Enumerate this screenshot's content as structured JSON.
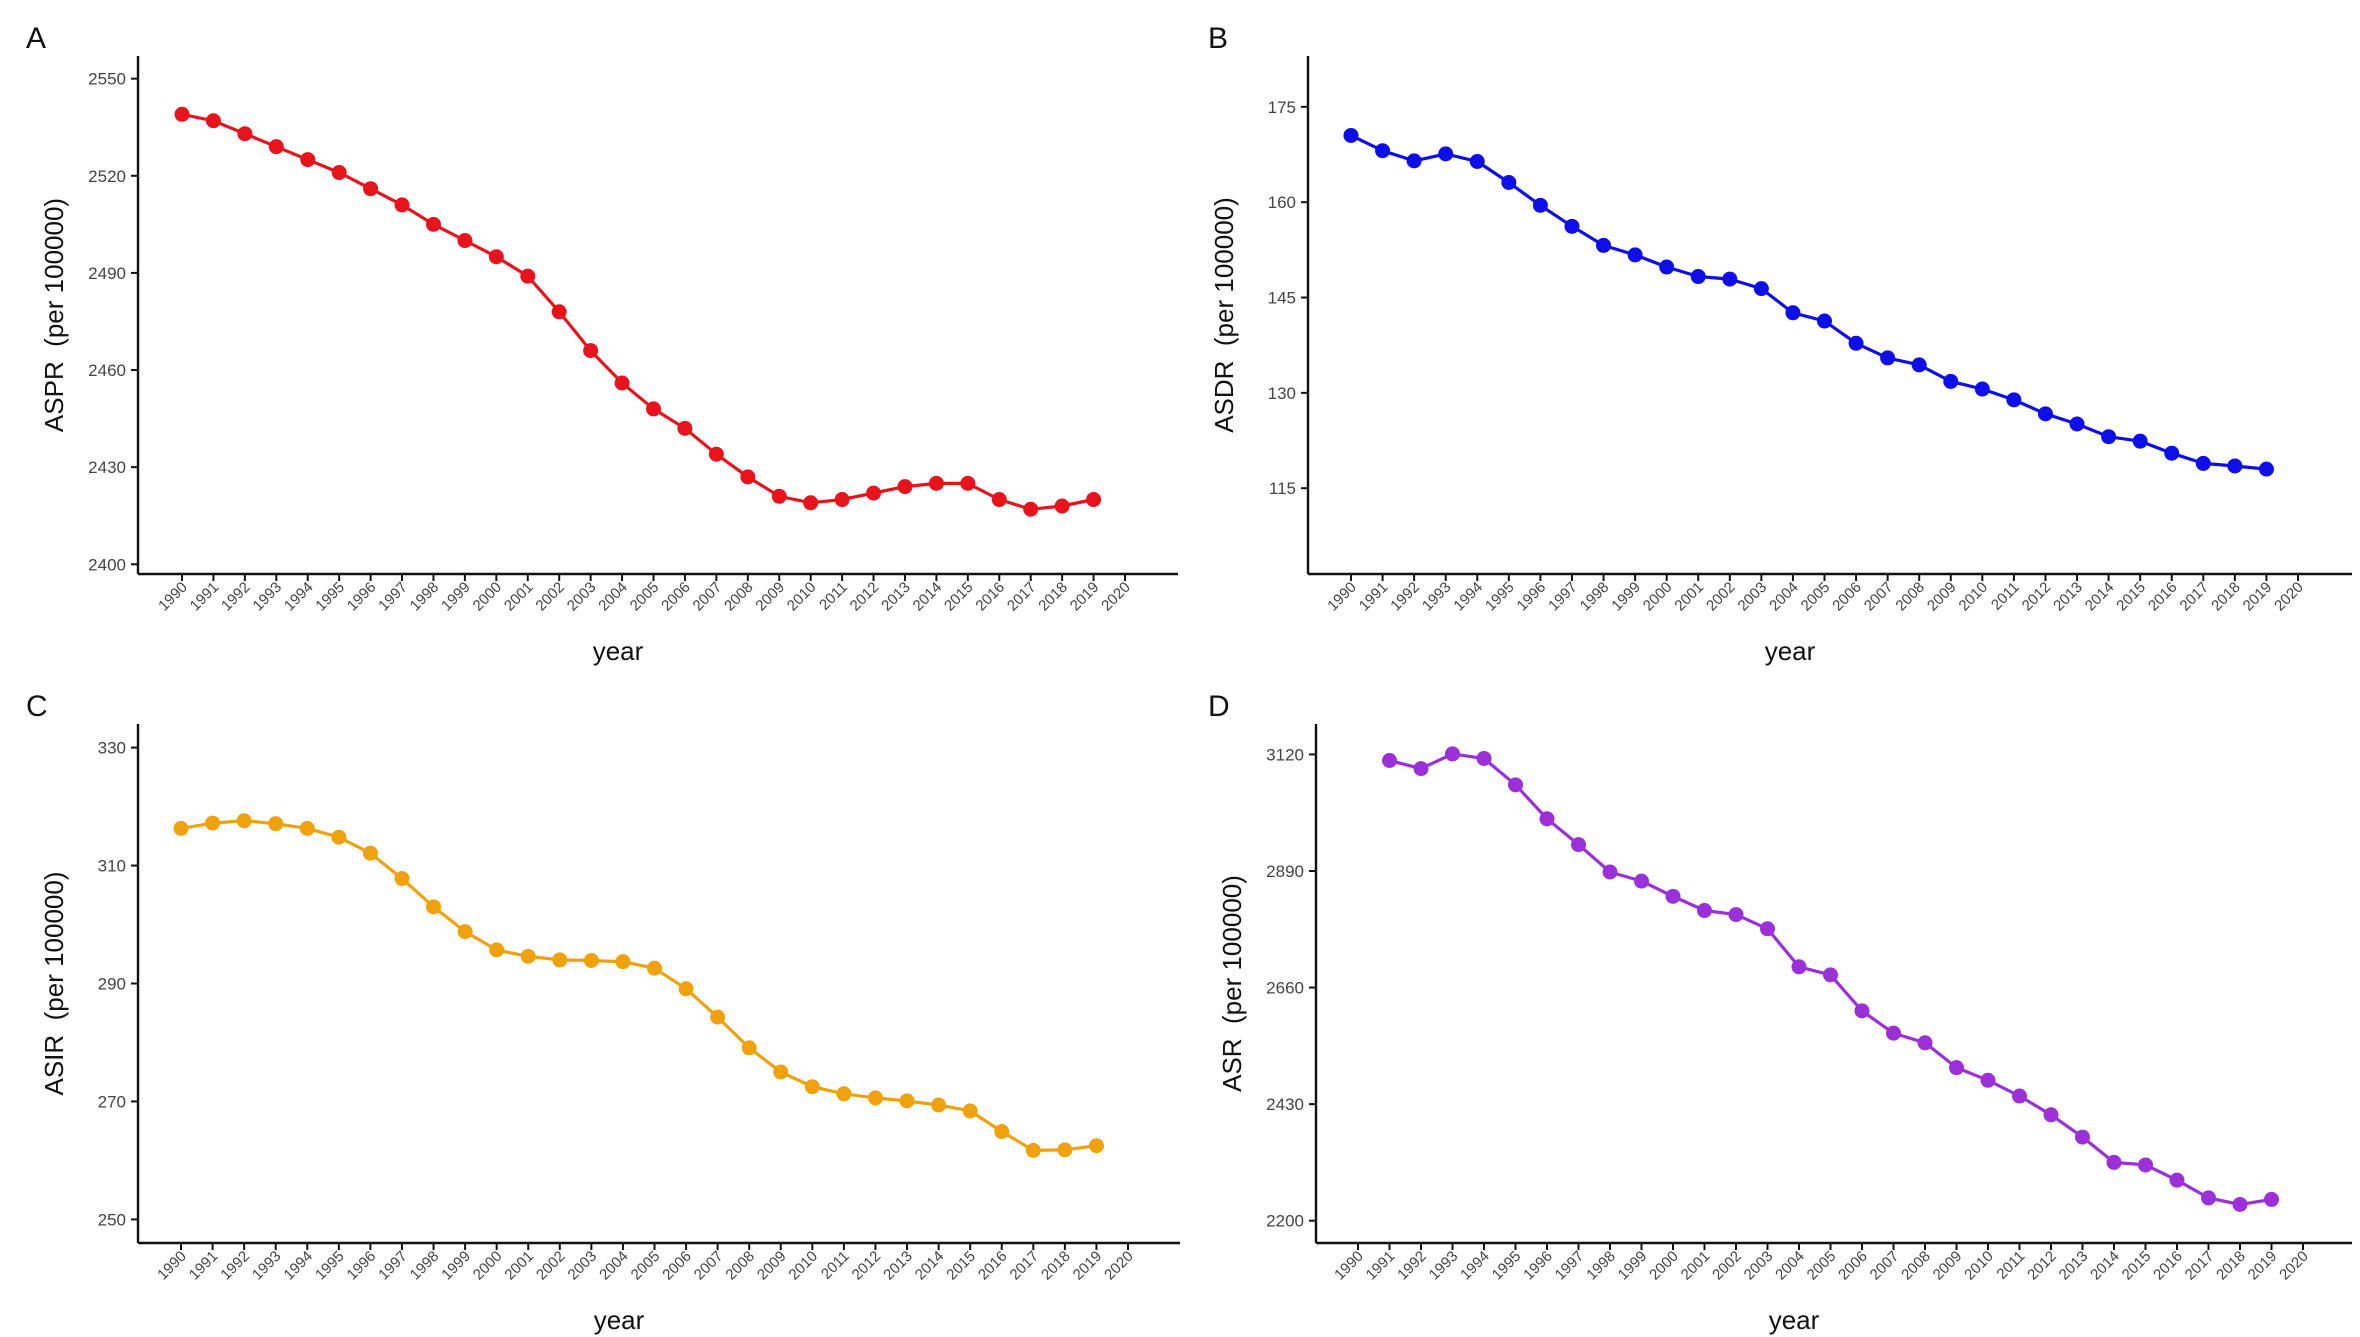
{
  "chart_data": [
    {
      "type": "line",
      "panel_label": "A",
      "xlabel": "year",
      "ylabel": "ASPR  (per 100000)",
      "x_ticks": [
        "1990",
        "1991",
        "1992",
        "1993",
        "1994",
        "1995",
        "1996",
        "1997",
        "1998",
        "1999",
        "2000",
        "2001",
        "2002",
        "2003",
        "2004",
        "2005",
        "2006",
        "2007",
        "2008",
        "2009",
        "2010",
        "2011",
        "2012",
        "2013",
        "2014",
        "2015",
        "2016",
        "2017",
        "2018",
        "2019",
        "2020"
      ],
      "ylim": [
        2397,
        2557
      ],
      "y_ticks": [
        2400,
        2430,
        2460,
        2490,
        2520,
        2550
      ],
      "color": "#e8141b",
      "grid": false,
      "series": [
        {
          "x": [
            1990,
            1991,
            1992,
            1993,
            1994,
            1995,
            1996,
            1997,
            1998,
            1999,
            2000,
            2001,
            2002,
            2003,
            2004,
            2005,
            2006,
            2007,
            2008,
            2009,
            2010,
            2011,
            2012,
            2013,
            2014,
            2015,
            2016,
            2017,
            2018,
            2019
          ],
          "values": [
            2539,
            2537,
            2533,
            2529,
            2525,
            2521,
            2516,
            2511,
            2505,
            2500,
            2495,
            2489,
            2478,
            2466,
            2456,
            2448,
            2442,
            2434,
            2427,
            2421,
            2419,
            2420,
            2422,
            2424,
            2425,
            2425,
            2420,
            2417,
            2418,
            2420
          ]
        }
      ]
    },
    {
      "type": "line",
      "panel_label": "B",
      "xlabel": "year",
      "ylabel": "ASDR  (per 100000)",
      "x_ticks": [
        "1990",
        "1991",
        "1992",
        "1993",
        "1994",
        "1995",
        "1996",
        "1997",
        "1998",
        "1999",
        "2000",
        "2001",
        "2002",
        "2003",
        "2004",
        "2005",
        "2006",
        "2007",
        "2008",
        "2009",
        "2010",
        "2011",
        "2012",
        "2013",
        "2014",
        "2015",
        "2016",
        "2017",
        "2018",
        "2019",
        "2020"
      ],
      "ylim": [
        101.5,
        183
      ],
      "y_ticks": [
        115,
        130,
        145,
        160,
        175
      ],
      "color": "#0d0ee8",
      "grid": false,
      "series": [
        {
          "x": [
            1990,
            1991,
            1992,
            1993,
            1994,
            1995,
            1996,
            1997,
            1998,
            1999,
            2000,
            2001,
            2002,
            2003,
            2004,
            2005,
            2006,
            2007,
            2008,
            2009,
            2010,
            2011,
            2012,
            2013,
            2014,
            2015,
            2016,
            2017,
            2018,
            2019
          ],
          "values": [
            170.5,
            168.1,
            166.5,
            167.6,
            166.4,
            163.1,
            159.5,
            156.2,
            153.2,
            151.7,
            149.8,
            148.3,
            147.9,
            146.4,
            142.6,
            141.3,
            137.8,
            135.5,
            134.4,
            131.8,
            130.6,
            128.9,
            126.7,
            125.1,
            123.1,
            122.4,
            120.5,
            118.9,
            118.5,
            118.0
          ]
        }
      ]
    },
    {
      "type": "line",
      "panel_label": "C",
      "xlabel": "year",
      "ylabel": "ASIR  (per 100000)",
      "x_ticks": [
        "1990",
        "1991",
        "1992",
        "1993",
        "1994",
        "1995",
        "1996",
        "1997",
        "1998",
        "1999",
        "2000",
        "2001",
        "2002",
        "2003",
        "2004",
        "2005",
        "2006",
        "2007",
        "2008",
        "2009",
        "2010",
        "2011",
        "2012",
        "2013",
        "2014",
        "2015",
        "2016",
        "2017",
        "2018",
        "2019",
        "2020"
      ],
      "ylim": [
        246,
        334
      ],
      "y_ticks": [
        250,
        270,
        290,
        310,
        330
      ],
      "color": "#f0a20e",
      "grid": false,
      "series": [
        {
          "x": [
            1990,
            1991,
            1992,
            1993,
            1994,
            1995,
            1996,
            1997,
            1998,
            1999,
            2000,
            2001,
            2002,
            2003,
            2004,
            2005,
            2006,
            2007,
            2008,
            2009,
            2010,
            2011,
            2012,
            2013,
            2014,
            2015,
            2016,
            2017,
            2018,
            2019
          ],
          "values": [
            316.3,
            317.2,
            317.6,
            317.1,
            316.3,
            314.8,
            312.1,
            307.8,
            303.0,
            298.8,
            295.7,
            294.6,
            294.0,
            293.9,
            293.7,
            292.6,
            289.1,
            284.3,
            279.1,
            275.0,
            272.5,
            271.3,
            270.6,
            270.1,
            269.4,
            268.4,
            264.9,
            261.7,
            261.8,
            262.5
          ]
        }
      ]
    },
    {
      "type": "line",
      "panel_label": "D",
      "xlabel": "year",
      "ylabel": "ASR  (per 100000)",
      "x_ticks": [
        "1990",
        "1991",
        "1992",
        "1993",
        "1994",
        "1995",
        "1996",
        "1997",
        "1998",
        "1999",
        "2000",
        "2001",
        "2002",
        "2003",
        "2004",
        "2005",
        "2006",
        "2007",
        "2008",
        "2009",
        "2010",
        "2011",
        "2012",
        "2013",
        "2014",
        "2015",
        "2016",
        "2017",
        "2018",
        "2019",
        "2020"
      ],
      "ylim": [
        2156,
        3180
      ],
      "y_ticks": [
        2200,
        2430,
        2660,
        2890,
        3120
      ],
      "color": "#9b30d8",
      "grid": false,
      "series": [
        {
          "x": [
            1991,
            1992,
            1993,
            1994,
            1995,
            1996,
            1997,
            1998,
            1999,
            2000,
            2001,
            2002,
            2003,
            2004,
            2005,
            2006,
            2007,
            2008,
            2009,
            2010,
            2011,
            2012,
            2013,
            2014,
            2015,
            2016,
            2017,
            2018,
            2019
          ],
          "values": [
            3108,
            3092,
            3121,
            3112,
            3060,
            2993,
            2942,
            2888,
            2870,
            2840,
            2812,
            2804,
            2776,
            2701,
            2685,
            2614,
            2570,
            2551,
            2502,
            2477,
            2446,
            2409,
            2365,
            2315,
            2310,
            2280,
            2245,
            2232,
            2242
          ]
        }
      ]
    }
  ]
}
